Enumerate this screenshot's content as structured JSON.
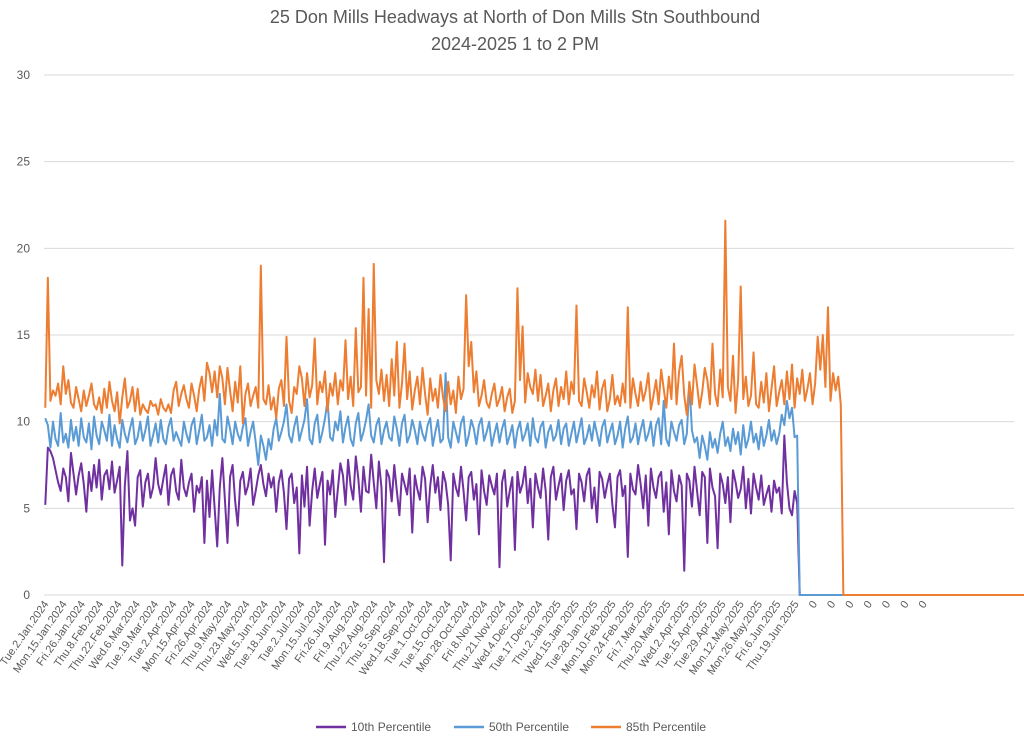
{
  "chart_data": {
    "type": "line",
    "title": "25 Don Mills Headways at North of Don Mills Stn Southbound",
    "subtitle": "2024-2025 1 to 2 PM",
    "xlabel": "",
    "ylabel": "",
    "ylim": [
      0,
      30
    ],
    "yticks": [
      "0",
      "5",
      "10",
      "15",
      "20",
      "25",
      "30"
    ],
    "grid": true,
    "legend_position": "bottom",
    "x_tick_labels": [
      "Tue.2.Jan.2024",
      "Mon.15.Jan.2024",
      "Fri.26.Jan.2024",
      "Thu.8.Feb.2024",
      "Thu.22.Feb.2024",
      "Wed.6.Mar.2024",
      "Tue.19.Mar.2024",
      "Tue.2.Apr.2024",
      "Mon.15.Apr.2024",
      "Fri.26.Apr.2024",
      "Thu.9.May.2024",
      "Thu.23.May.2024",
      "Wed.5.Jun.2024",
      "Tue.18.Jun.2024",
      "Tue.2.Jul.2024",
      "Mon.15.Jul.2024",
      "Fri.26.Jul.2024",
      "Fri.9.Aug.2024",
      "Thu.22.Aug.2024",
      "Thu.5.Sep.2024",
      "Wed.18.Sep.2024",
      "Tue.1.Oct.2024",
      "Tue.15.Oct.2024",
      "Mon.28.Oct.2024",
      "Fri.8.Nov.2024",
      "Thu.21.Nov.2024",
      "Wed.4.Dec.2024",
      "Tue.17.Dec.2024",
      "Thu.2.Jan.2025",
      "Wed.15.Jan.2025",
      "Tue.28.Jan.2025",
      "Mon.10.Feb.2025",
      "Mon.24.Feb.2025",
      "Fri.7.Mar.2025",
      "Thu.20.Mar.2025",
      "Wed.2.Apr.2025",
      "Tue.15.Apr.2025",
      "Tue.29.Apr.2025",
      "Mon.12.May.2025",
      "Mon.26.May.2025",
      "Fri.6.Jun.2025",
      "Thu.19.Jun.2025",
      "0",
      "0",
      "0",
      "0",
      "0",
      "0",
      "0"
    ],
    "series": [
      {
        "name": "10th Percentile",
        "color": "#7030A0",
        "values": [
          5.2,
          8.5,
          8.3,
          7.9,
          7.2,
          6.5,
          6.0,
          7.3,
          6.8,
          5.4,
          8.2,
          7.0,
          5.8,
          6.9,
          7.6,
          6.4,
          4.8,
          7.1,
          6.0,
          7.5,
          6.2,
          7.8,
          5.5,
          6.9,
          7.2,
          6.1,
          7.7,
          5.9,
          6.6,
          7.4,
          1.7,
          6.3,
          8.3,
          4.3,
          5.0,
          4.0,
          6.8,
          7.2,
          5.1,
          6.5,
          7.0,
          5.6,
          6.2,
          7.9,
          6.4,
          5.8,
          6.7,
          7.5,
          5.2,
          6.9,
          7.3,
          6.0,
          5.5,
          7.8,
          6.2,
          5.7,
          6.5,
          7.0,
          4.8,
          6.3,
          5.9,
          6.8,
          3.0,
          6.6,
          4.5,
          7.2,
          5.0,
          2.8,
          6.2,
          7.9,
          5.5,
          3.0,
          6.8,
          7.5,
          5.4,
          4.0,
          6.6,
          7.1,
          5.8,
          6.3,
          7.3,
          5.2,
          6.0,
          6.9,
          7.5,
          6.4,
          5.7,
          7.0,
          6.2,
          6.8,
          4.8,
          6.5,
          7.2,
          5.9,
          3.8,
          6.7,
          7.0,
          5.3,
          6.2,
          2.4,
          6.9,
          5.1,
          7.4,
          4.0,
          6.0,
          7.3,
          5.6,
          6.4,
          7.1,
          2.9,
          6.6,
          5.8,
          7.2,
          4.5,
          6.1,
          7.6,
          6.9,
          5.2,
          7.8,
          6.3,
          5.5,
          8.0,
          6.7,
          4.8,
          7.4,
          6.0,
          5.9,
          8.1,
          6.5,
          5.0,
          7.7,
          6.2,
          1.9,
          7.2,
          6.8,
          5.4,
          7.5,
          6.0,
          4.6,
          7.0,
          6.4,
          5.8,
          7.3,
          3.6,
          6.9,
          6.1,
          5.5,
          7.4,
          6.7,
          4.2,
          6.3,
          7.5,
          5.9,
          6.8,
          4.9,
          7.1,
          6.5,
          5.2,
          2.0,
          7.0,
          6.2,
          5.7,
          7.4,
          6.0,
          4.3,
          6.8,
          7.1,
          5.5,
          6.4,
          3.5,
          7.2,
          6.0,
          5.2,
          6.9,
          6.3,
          5.8,
          7.0,
          1.6,
          6.5,
          7.2,
          5.1,
          6.0,
          6.8,
          2.6,
          7.1,
          5.9,
          6.4,
          7.4,
          5.3,
          6.7,
          3.9,
          7.0,
          6.2,
          5.6,
          7.3,
          6.0,
          3.2,
          6.8,
          7.4,
          5.5,
          6.3,
          7.0,
          4.9,
          6.6,
          7.2,
          5.8,
          6.1,
          3.8,
          7.0,
          6.5,
          5.4,
          6.9,
          7.3,
          5.0,
          6.2,
          4.2,
          7.1,
          6.7,
          5.6,
          6.4,
          7.0,
          5.2,
          3.9,
          6.8,
          7.2,
          5.7,
          6.3,
          2.2,
          7.0,
          6.1,
          5.8,
          7.5,
          6.4,
          5.0,
          6.9,
          4.0,
          7.3,
          6.2,
          5.6,
          6.8,
          7.1,
          4.8,
          6.5,
          3.5,
          7.2,
          6.0,
          5.4,
          6.9,
          6.3,
          1.4,
          7.0,
          6.6,
          5.1,
          7.4,
          6.0,
          4.6,
          7.1,
          6.8,
          3.0,
          7.3,
          6.2,
          5.7,
          2.7,
          7.0,
          6.4,
          5.3,
          6.8,
          4.2,
          7.2,
          6.5,
          5.6,
          6.1,
          7.4,
          5.0,
          6.7,
          4.7,
          7.0,
          6.2,
          5.5,
          6.9,
          5.2,
          5.8,
          6.3,
          4.8,
          6.6,
          5.9,
          6.2,
          4.7,
          9.2,
          6.5,
          5.0,
          4.6,
          6.0,
          5.3,
          0,
          0,
          0,
          0,
          0,
          0,
          0,
          0,
          0,
          0,
          0,
          0,
          0,
          0,
          0,
          0,
          0,
          0,
          0,
          0,
          0,
          0,
          0,
          0,
          0,
          0,
          0,
          0,
          0,
          0,
          0,
          0,
          0,
          0,
          0,
          0,
          0,
          0,
          0,
          0,
          0,
          0,
          0,
          0,
          0,
          0,
          0,
          0,
          0,
          0,
          0,
          0,
          0,
          0,
          0,
          0,
          0,
          0,
          0,
          0,
          0,
          0,
          0,
          0,
          0,
          0,
          0,
          0,
          0,
          0,
          0,
          0,
          0,
          0,
          0,
          0,
          0,
          0,
          0,
          0,
          0,
          0,
          0,
          0
        ]
      },
      {
        "name": "50th Percentile",
        "color": "#5B9BD5",
        "values": [
          10.2,
          9.8,
          8.5,
          10.0,
          9.0,
          8.6,
          10.5,
          8.8,
          9.3,
          8.5,
          10.1,
          8.9,
          9.7,
          8.6,
          10.2,
          9.1,
          8.8,
          9.9,
          8.4,
          10.3,
          9.2,
          8.7,
          10.0,
          9.5,
          8.9,
          10.4,
          8.6,
          9.8,
          9.0,
          8.5,
          10.1,
          9.3,
          8.8,
          9.6,
          10.2,
          8.7,
          9.1,
          10.0,
          8.9,
          9.5,
          10.3,
          8.6,
          9.2,
          9.9,
          8.8,
          10.1,
          9.0,
          8.7,
          9.7,
          10.2,
          8.9,
          9.4,
          9.0,
          8.6,
          10.0,
          9.3,
          8.8,
          9.8,
          10.2,
          8.7,
          9.5,
          10.4,
          8.9,
          9.1,
          9.8,
          8.6,
          10.1,
          9.2,
          11.6,
          9.0,
          8.8,
          10.3,
          9.6,
          8.7,
          10.0,
          9.3,
          8.9,
          9.7,
          10.2,
          8.6,
          9.4,
          10.0,
          8.8,
          7.5,
          9.2,
          8.6,
          7.8,
          9.0,
          8.4,
          9.6,
          10.2,
          8.9,
          9.4,
          10.0,
          11.0,
          9.2,
          8.8,
          9.7,
          10.3,
          8.9,
          9.5,
          10.1,
          11.3,
          9.0,
          8.7,
          9.9,
          10.4,
          8.8,
          9.4,
          10.2,
          11.2,
          9.1,
          8.9,
          10.0,
          9.5,
          10.6,
          8.8,
          9.7,
          10.3,
          9.0,
          8.6,
          9.9,
          10.5,
          8.9,
          9.4,
          10.1,
          11.0,
          9.2,
          8.8,
          9.8,
          10.2,
          8.7,
          9.5,
          10.0,
          9.1,
          8.9,
          10.3,
          9.6,
          8.6,
          9.9,
          10.4,
          8.8,
          9.2,
          10.1,
          9.5,
          8.7,
          10.0,
          9.3,
          8.9,
          9.8,
          10.2,
          8.6,
          9.4,
          10.1,
          8.8,
          9.0,
          12.8,
          9.1,
          8.5,
          10.0,
          9.4,
          8.8,
          9.9,
          10.3,
          8.6,
          9.2,
          10.1,
          9.6,
          8.7,
          9.8,
          10.2,
          8.9,
          9.4,
          10.0,
          8.6,
          9.3,
          9.9,
          8.8,
          9.6,
          10.1,
          8.7,
          9.2,
          9.8,
          8.5,
          9.5,
          10.0,
          8.9,
          9.3,
          9.9,
          8.6,
          10.2,
          9.1,
          8.8,
          9.7,
          10.0,
          8.5,
          9.4,
          9.8,
          8.9,
          9.2,
          10.1,
          8.7,
          9.6,
          9.9,
          8.6,
          9.3,
          10.0,
          8.8,
          9.5,
          10.2,
          8.7,
          9.1,
          9.8,
          8.9,
          10.0,
          9.3,
          8.6,
          9.7,
          10.1,
          8.8,
          9.4,
          9.9,
          8.7,
          9.2,
          10.0,
          8.5,
          9.6,
          10.3,
          8.8,
          9.1,
          9.9,
          8.7,
          9.5,
          10.1,
          8.9,
          9.3,
          10.0,
          8.6,
          9.8,
          10.2,
          8.7,
          11.2,
          9.0,
          8.6,
          10.0,
          9.4,
          8.9,
          9.8,
          10.1,
          8.7,
          9.3,
          12.2,
          9.5,
          8.8,
          9.1,
          7.9,
          9.2,
          8.6,
          7.8,
          9.4,
          8.5,
          9.0,
          8.2,
          9.3,
          10.0,
          8.6,
          9.1,
          8.3,
          9.6,
          8.7,
          9.4,
          8.1,
          9.8,
          8.5,
          9.0,
          10.0,
          8.8,
          9.3,
          8.4,
          9.7,
          8.6,
          9.2,
          10.1,
          8.9,
          9.5,
          8.7,
          9.3,
          10.4,
          9.8,
          11.2,
          10.2,
          10.8,
          9.1,
          9.2,
          0,
          0,
          0,
          0,
          0,
          0,
          0,
          0,
          0,
          0,
          0,
          0,
          0,
          0,
          0,
          0,
          0,
          0,
          0,
          0,
          0,
          0,
          0,
          0,
          0,
          0,
          0,
          0,
          0,
          0,
          0,
          0,
          0,
          0,
          0,
          0,
          0,
          0,
          0,
          0,
          0,
          0,
          0,
          0,
          0,
          0,
          0,
          0,
          0,
          0,
          0,
          0,
          0,
          0,
          0,
          0,
          0,
          0,
          0,
          0,
          0,
          0,
          0,
          0,
          0,
          0,
          0,
          0,
          0,
          0,
          0,
          0,
          0,
          0,
          0,
          0,
          0,
          0,
          0,
          0,
          0,
          0,
          0,
          0
        ]
      },
      {
        "name": "85th Percentile",
        "color": "#ED7D31",
        "values": [
          10.8,
          18.3,
          11.2,
          11.8,
          11.5,
          12.2,
          11.0,
          13.2,
          11.6,
          12.4,
          11.1,
          10.8,
          12.0,
          11.3,
          10.6,
          11.8,
          10.9,
          11.5,
          12.2,
          11.0,
          10.7,
          11.4,
          10.5,
          11.9,
          10.8,
          12.3,
          11.2,
          10.6,
          11.7,
          9.9,
          11.4,
          12.5,
          10.8,
          11.2,
          12.0,
          10.6,
          11.9,
          10.4,
          11.0,
          10.7,
          10.5,
          11.2,
          10.9,
          11.0,
          10.4,
          11.3,
          10.8,
          10.6,
          11.0,
          10.5,
          11.8,
          12.3,
          10.9,
          11.6,
          12.1,
          11.3,
          10.8,
          12.2,
          11.5,
          10.6,
          11.9,
          12.6,
          11.2,
          13.4,
          12.8,
          11.7,
          12.9,
          11.4,
          13.2,
          12.5,
          11.0,
          13.1,
          11.8,
          10.6,
          12.3,
          11.1,
          13.2,
          9.9,
          11.6,
          12.2,
          10.9,
          11.5,
          12.0,
          10.8,
          19.0,
          11.3,
          11.0,
          12.1,
          10.7,
          11.4,
          10.2,
          11.9,
          12.4,
          10.9,
          14.9,
          11.2,
          10.5,
          12.0,
          11.6,
          13.2,
          12.5,
          10.9,
          12.8,
          11.4,
          12.1,
          14.8,
          11.0,
          12.3,
          11.7,
          12.9,
          10.6,
          12.2,
          11.5,
          12.8,
          11.0,
          12.4,
          11.8,
          14.7,
          11.3,
          12.6,
          10.9,
          15.4,
          11.7,
          12.0,
          18.3,
          11.5,
          16.5,
          10.8,
          19.1,
          12.4,
          11.6,
          13.0,
          11.2,
          12.7,
          10.9,
          13.6,
          11.5,
          14.6,
          10.8,
          12.2,
          14.5,
          11.3,
          12.9,
          10.7,
          11.8,
          12.6,
          11.0,
          13.1,
          11.6,
          10.4,
          12.5,
          11.2,
          11.9,
          10.8,
          12.7,
          11.4,
          10.6,
          12.3,
          11.0,
          11.8,
          10.5,
          12.6,
          11.3,
          11.9,
          17.3,
          13.2,
          14.6,
          11.7,
          12.9,
          10.9,
          11.5,
          12.4,
          11.1,
          10.8,
          11.6,
          12.2,
          10.9,
          11.3,
          12.0,
          10.6,
          11.4,
          11.9,
          10.5,
          11.2,
          17.7,
          12.4,
          15.5,
          11.1,
          12.8,
          12.0,
          11.6,
          13.0,
          11.2,
          12.7,
          10.9,
          11.5,
          12.2,
          10.6,
          11.8,
          12.5,
          10.9,
          12.0,
          11.3,
          12.9,
          11.0,
          12.3,
          11.6,
          16.7,
          11.2,
          10.9,
          12.5,
          11.7,
          10.8,
          12.1,
          11.4,
          12.9,
          10.7,
          11.9,
          12.4,
          10.6,
          11.3,
          12.7,
          11.0,
          11.5,
          10.9,
          12.2,
          11.1,
          16.6,
          10.8,
          12.5,
          11.6,
          10.9,
          12.3,
          11.2,
          11.8,
          12.8,
          10.7,
          11.5,
          12.4,
          11.0,
          13.0,
          11.9,
          10.8,
          12.6,
          11.3,
          14.5,
          11.0,
          12.9,
          13.8,
          11.5,
          10.4,
          12.3,
          11.0,
          13.3,
          12.1,
          10.8,
          11.7,
          13.1,
          12.4,
          11.0,
          14.5,
          11.6,
          10.9,
          13.0,
          11.4,
          21.6,
          12.0,
          11.2,
          13.8,
          10.5,
          12.4,
          17.8,
          11.3,
          12.6,
          10.9,
          11.5,
          14.0,
          11.0,
          10.8,
          12.3,
          11.1,
          12.8,
          10.6,
          11.9,
          13.2,
          10.9,
          11.7,
          12.4,
          11.0,
          12.9,
          11.3,
          13.3,
          10.8,
          12.5,
          11.6,
          13.0,
          11.2,
          11.9,
          12.8,
          11.0,
          12.2,
          14.9,
          13.0,
          15.0,
          12.0,
          16.6,
          11.2,
          12.8,
          11.8,
          12.6,
          11.0,
          0,
          0,
          0,
          0,
          0,
          0,
          0,
          0,
          0,
          0,
          0,
          0,
          0,
          0,
          0,
          0,
          0,
          0,
          0,
          0,
          0,
          0,
          0,
          0,
          0,
          0,
          0,
          0,
          0,
          0,
          0,
          0,
          0,
          0,
          0,
          0,
          0,
          0,
          0,
          0,
          0,
          0,
          0,
          0,
          0,
          0,
          0,
          0,
          0,
          0,
          0,
          0,
          0,
          0,
          0,
          0,
          0,
          0,
          0,
          0,
          0,
          0,
          0,
          0,
          0,
          0,
          0,
          0,
          0,
          0,
          0,
          0,
          0,
          0,
          0,
          0,
          0,
          0,
          0,
          0,
          0,
          0,
          0,
          0
        ]
      }
    ]
  },
  "page_colors": {
    "grid": "#D9D9D9",
    "text": "#595959",
    "background": "#FFFFFF"
  }
}
